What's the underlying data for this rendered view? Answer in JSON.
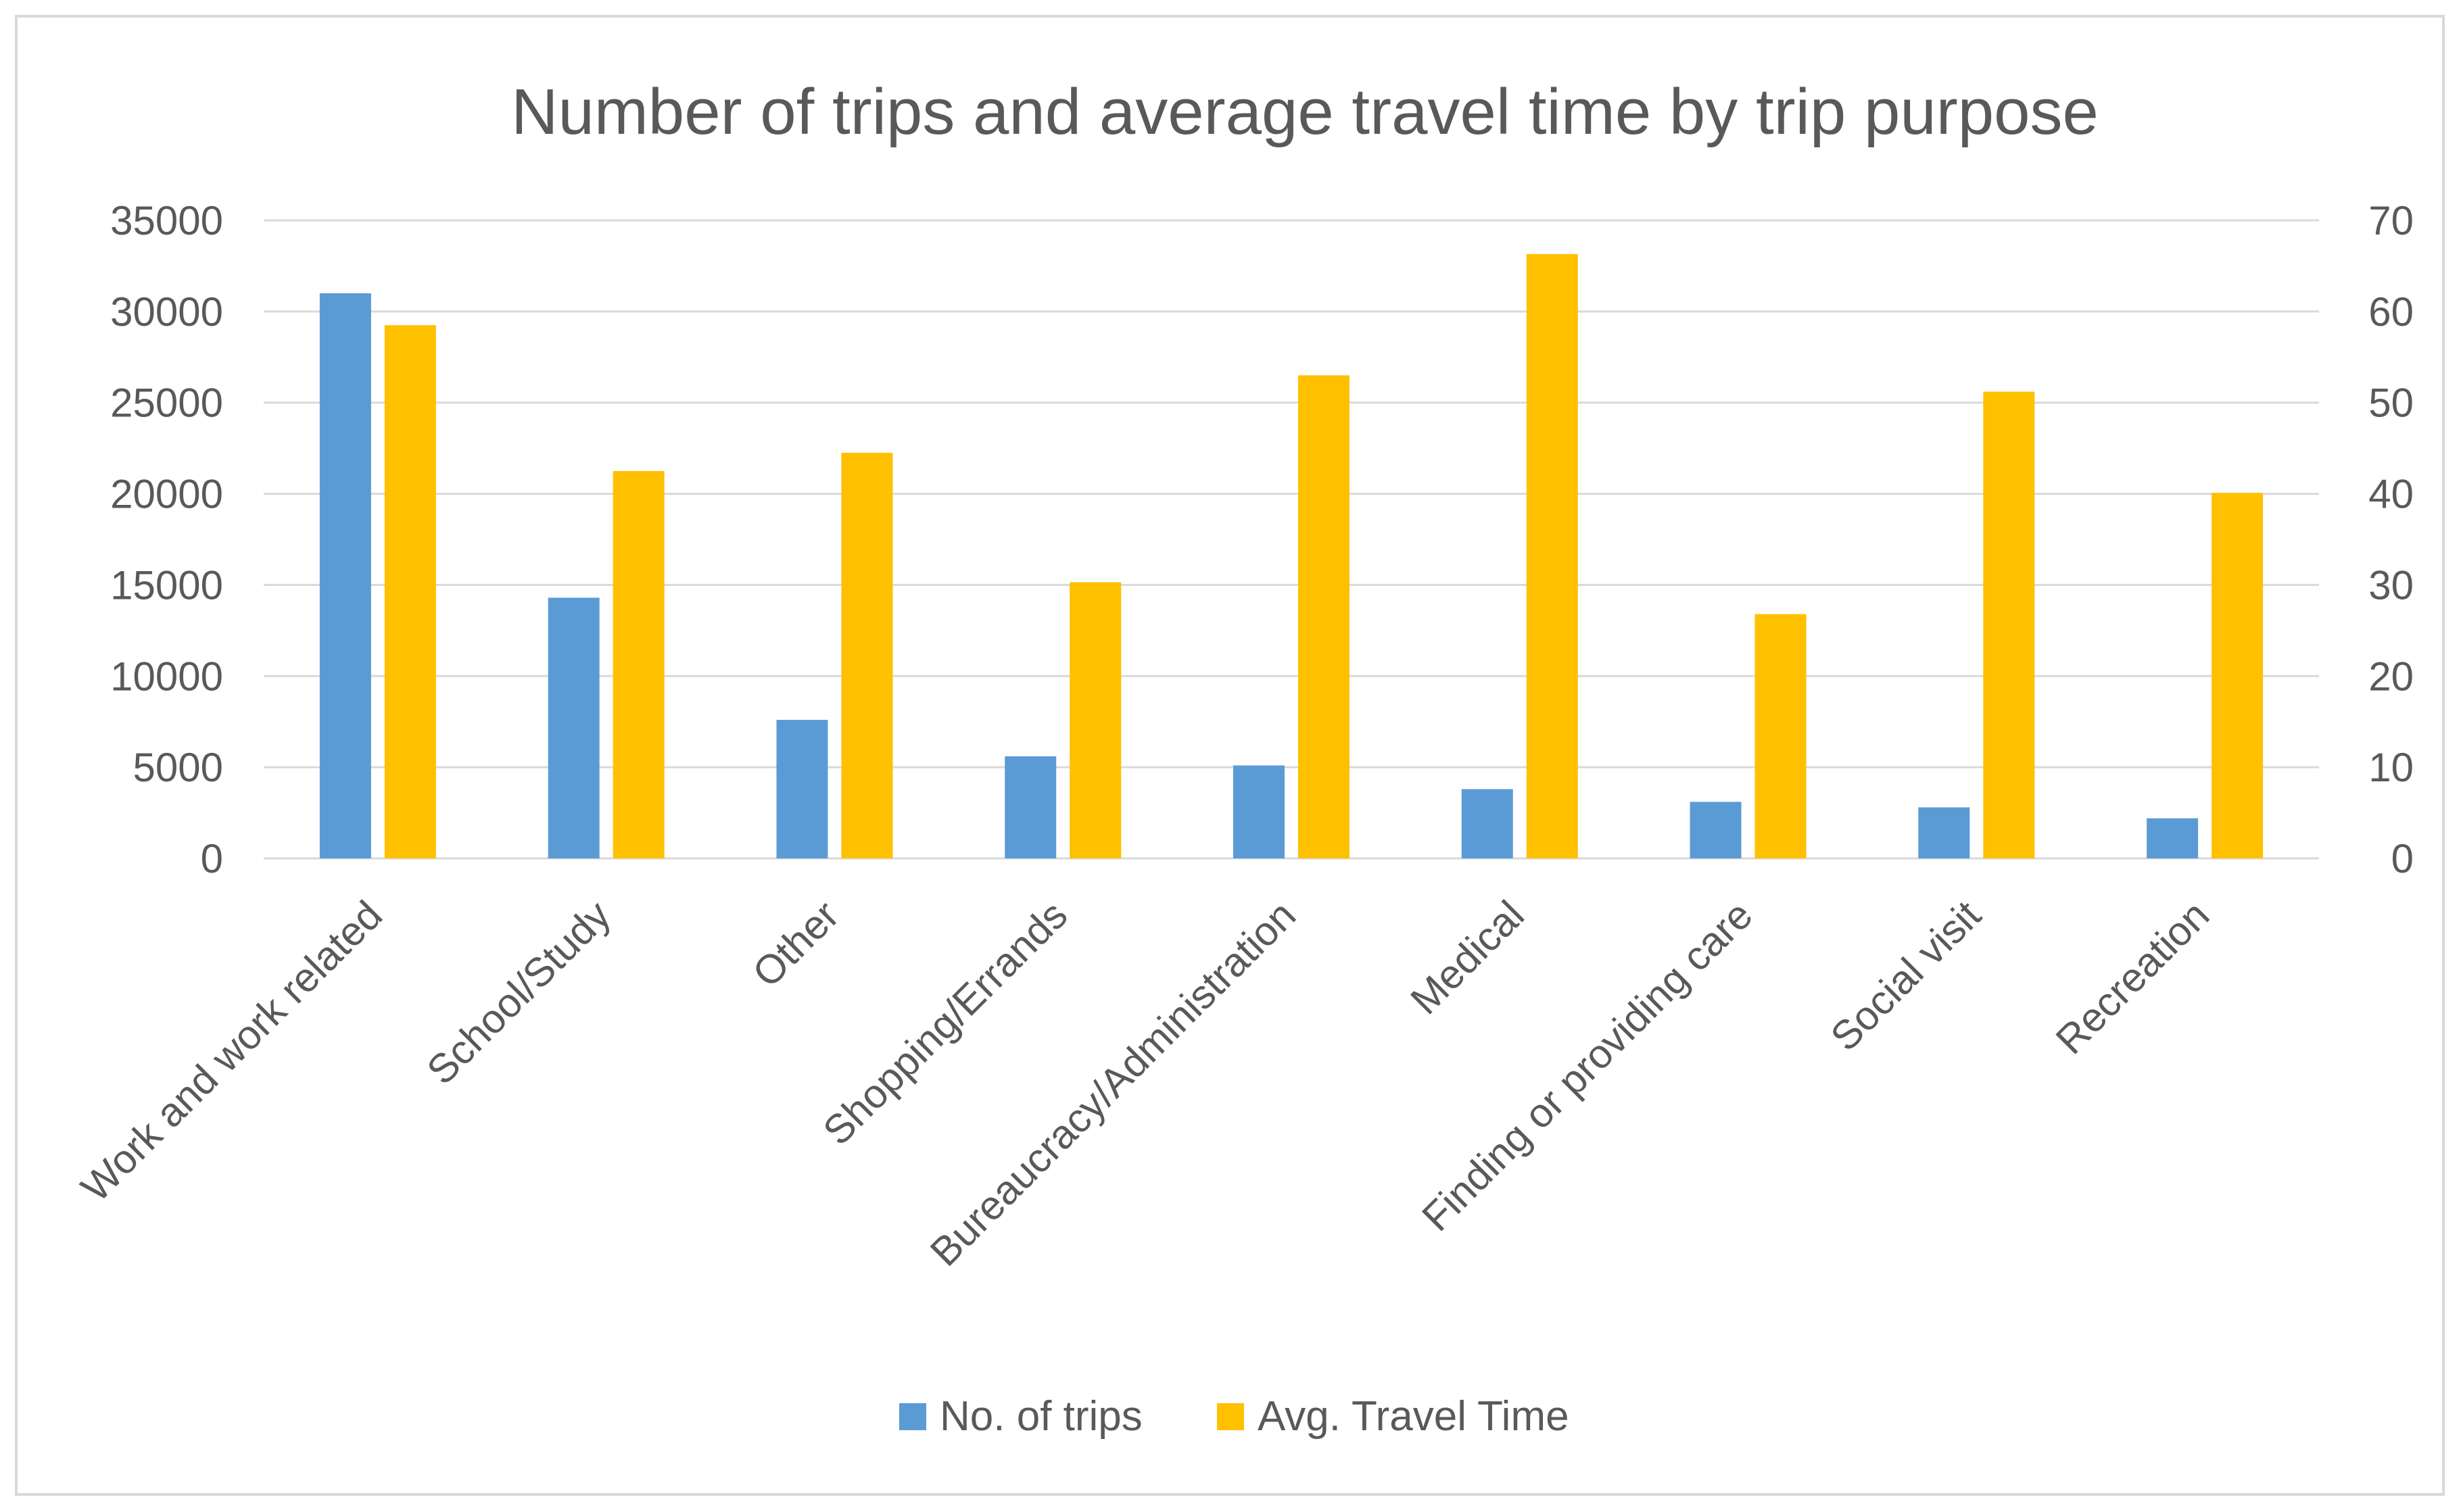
{
  "chart_data": {
    "type": "bar",
    "title": "Number of trips and average travel time by trip purpose",
    "categories": [
      "Work and work related",
      "School/Study",
      "Other",
      "Shopping/Errands",
      "Bureaucracy/Administration",
      "Medical",
      "Finding or providing care",
      "Social visit",
      "Recreation"
    ],
    "series": [
      {
        "name": "No. of trips",
        "axis": "left",
        "color": "#5b9bd5",
        "values": [
          31000,
          14300,
          7600,
          5600,
          5100,
          3800,
          3100,
          2800,
          2200
        ]
      },
      {
        "name": "Avg. Travel Time",
        "axis": "right",
        "color": "#ffc000",
        "values": [
          58.5,
          42.5,
          44.5,
          30.3,
          53,
          66.3,
          26.8,
          51.2,
          40.1
        ]
      }
    ],
    "y_left": {
      "min": 0,
      "max": 35000,
      "ticks": [
        "0",
        "5000",
        "10000",
        "15000",
        "20000",
        "25000",
        "30000",
        "35000"
      ]
    },
    "y_right": {
      "min": 0,
      "max": 70,
      "ticks": [
        "0",
        "10",
        "20",
        "30",
        "40",
        "50",
        "60",
        "70"
      ]
    },
    "grid": true,
    "legend_position": "bottom"
  }
}
